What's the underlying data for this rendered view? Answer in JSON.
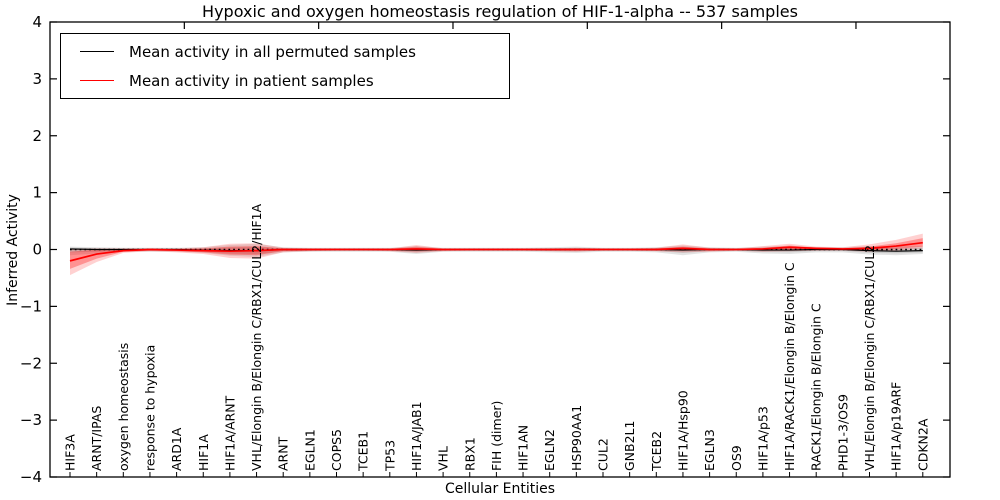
{
  "figure": {
    "title": "Hypoxic and oxygen homeostasis regulation of HIF-1-alpha -- 537 samples",
    "sample_count": "537"
  },
  "chart_data": {
    "type": "line",
    "title": "Hypoxic and oxygen homeostasis regulation of HIF-1-alpha -- 537 samples",
    "xlabel": "Cellular Entities",
    "ylabel": "Inferred Activity",
    "ylim": [
      -4,
      4
    ],
    "yticks": {
      "values": [
        4,
        3,
        2,
        1,
        0,
        -1,
        -2,
        -3,
        -4
      ],
      "labels": [
        "4",
        "3",
        "2",
        "1",
        "0",
        "−1",
        "−2",
        "−3",
        "−4"
      ]
    },
    "grid": false,
    "legend_position": "upper left",
    "baseline": {
      "y": 0,
      "style": "dotted",
      "color": "#000000"
    },
    "categories": [
      "HIF3A",
      "ARNT/IPAS",
      "oxygen homeostasis",
      "response to hypoxia",
      "ARD1A",
      "HIF1A",
      "HIF1A/ARNT",
      "VHL/Elongin B/Elongin C/RBX1/CUL2/HIF1A",
      "ARNT",
      "EGLN1",
      "COPS5",
      "TCEB1",
      "TP53",
      "HIF1A/JAB1",
      "VHL",
      "RBX1",
      "FIH (dimer)",
      "HIF1AN",
      "EGLN2",
      "HSP90AA1",
      "CUL2",
      "GNB2L1",
      "TCEB2",
      "HIF1A/Hsp90",
      "EGLN3",
      "OS9",
      "HIF1A/p53",
      "HIF1A/RACK1/Elongin B/Elongin C",
      "RACK1/Elongin B/Elongin C",
      "PHD1-3/OS9",
      "VHL/Elongin B/Elongin C/RBX1/CUL2",
      "HIF1A/p19ARF",
      "CDKN2A"
    ],
    "series": [
      {
        "name": "Mean activity in all permuted samples",
        "color": "#000000",
        "band_color": "rgba(0,0,0,0.11)",
        "values": [
          0.01,
          0,
          0,
          0,
          0,
          -0.01,
          -0.02,
          -0.02,
          0,
          0,
          0,
          0,
          0,
          -0.01,
          0,
          0,
          0,
          0,
          0,
          0,
          0,
          0,
          0,
          -0.01,
          0,
          0,
          -0.01,
          -0.01,
          0,
          0,
          -0.02,
          -0.03,
          -0.02
        ],
        "band_upper": [
          0.05,
          0.04,
          0.03,
          0.03,
          0.03,
          0.04,
          0.08,
          0.1,
          0.04,
          0.03,
          0.03,
          0.03,
          0.03,
          0.06,
          0.03,
          0.03,
          0.03,
          0.03,
          0.04,
          0.05,
          0.03,
          0.03,
          0.04,
          0.07,
          0.04,
          0.03,
          0.05,
          0.06,
          0.04,
          0.04,
          0.06,
          0.06,
          0.06
        ],
        "band_lower": [
          -0.1,
          -0.07,
          -0.04,
          -0.04,
          -0.04,
          -0.06,
          -0.11,
          -0.13,
          -0.05,
          -0.04,
          -0.04,
          -0.04,
          -0.04,
          -0.08,
          -0.04,
          -0.04,
          -0.04,
          -0.04,
          -0.05,
          -0.06,
          -0.04,
          -0.04,
          -0.05,
          -0.1,
          -0.05,
          -0.04,
          -0.07,
          -0.08,
          -0.05,
          -0.05,
          -0.09,
          -0.1,
          -0.08
        ]
      },
      {
        "name": "Mean activity in patient samples",
        "color": "#ff0000",
        "band_outer_color": "rgba(255,0,0,0.18)",
        "band_inner_color": "rgba(255,0,0,0.30)",
        "values": [
          -0.2,
          -0.08,
          -0.02,
          0.0,
          -0.01,
          -0.02,
          -0.03,
          -0.02,
          0.0,
          0.0,
          0.0,
          0.0,
          0.0,
          0.01,
          0.0,
          0.0,
          0.0,
          0.0,
          0.0,
          0.0,
          0.0,
          0.0,
          0.0,
          0.02,
          0.0,
          0.0,
          0.01,
          0.04,
          0.02,
          0.01,
          0.02,
          0.06,
          0.12
        ],
        "band_outer_upper": [
          0.01,
          0.02,
          0.02,
          0.02,
          0.02,
          0.04,
          0.1,
          0.11,
          0.03,
          0.02,
          0.02,
          0.02,
          0.02,
          0.08,
          0.02,
          0.02,
          0.02,
          0.02,
          0.02,
          0.03,
          0.02,
          0.02,
          0.03,
          0.09,
          0.03,
          0.02,
          0.06,
          0.1,
          0.05,
          0.04,
          0.09,
          0.17,
          0.28
        ],
        "band_outer_lower": [
          -0.45,
          -0.22,
          -0.06,
          -0.03,
          -0.05,
          -0.08,
          -0.15,
          -0.16,
          -0.05,
          -0.03,
          -0.02,
          -0.02,
          -0.03,
          -0.06,
          -0.03,
          -0.02,
          -0.02,
          -0.02,
          -0.03,
          -0.04,
          -0.02,
          -0.02,
          -0.03,
          -0.05,
          -0.04,
          -0.02,
          -0.04,
          -0.03,
          -0.02,
          -0.02,
          -0.04,
          -0.02,
          0.02
        ],
        "band_inner_upper": [
          -0.04,
          0.0,
          0.01,
          0.01,
          0.01,
          0.02,
          0.05,
          0.06,
          0.02,
          0.01,
          0.01,
          0.01,
          0.01,
          0.05,
          0.01,
          0.01,
          0.01,
          0.01,
          0.01,
          0.02,
          0.01,
          0.01,
          0.02,
          0.05,
          0.02,
          0.01,
          0.03,
          0.07,
          0.03,
          0.02,
          0.05,
          0.11,
          0.2
        ],
        "band_inner_lower": [
          -0.34,
          -0.16,
          -0.04,
          -0.02,
          -0.03,
          -0.05,
          -0.09,
          -0.1,
          -0.03,
          -0.02,
          -0.01,
          -0.01,
          -0.02,
          -0.03,
          -0.02,
          -0.01,
          -0.01,
          -0.01,
          -0.02,
          -0.02,
          -0.01,
          -0.01,
          -0.02,
          -0.02,
          -0.02,
          -0.01,
          -0.02,
          -0.01,
          -0.01,
          -0.01,
          -0.02,
          0.01,
          0.05
        ]
      }
    ]
  }
}
